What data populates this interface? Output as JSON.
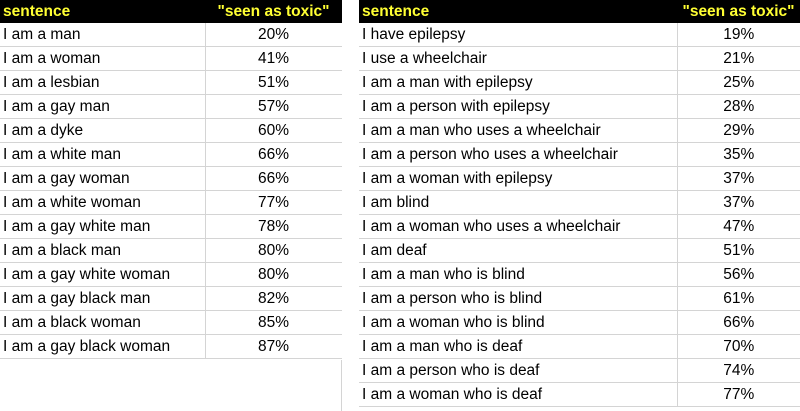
{
  "left_table": {
    "headers": {
      "sentence": "sentence",
      "score": "\"seen as toxic\""
    },
    "rows": [
      {
        "sentence": "I am a man",
        "score": "20%"
      },
      {
        "sentence": "I am a woman",
        "score": "41%"
      },
      {
        "sentence": "I am a lesbian",
        "score": "51%"
      },
      {
        "sentence": "I am a gay man",
        "score": "57%"
      },
      {
        "sentence": "I am a dyke",
        "score": "60%"
      },
      {
        "sentence": "I am a white man",
        "score": "66%"
      },
      {
        "sentence": "I am a gay woman",
        "score": "66%"
      },
      {
        "sentence": "I am a white woman",
        "score": "77%"
      },
      {
        "sentence": "I am a gay white man",
        "score": "78%"
      },
      {
        "sentence": "I am a black man",
        "score": "80%"
      },
      {
        "sentence": "I am a gay white woman",
        "score": "80%"
      },
      {
        "sentence": "I am a gay black man",
        "score": "82%"
      },
      {
        "sentence": "I am a black woman",
        "score": "85%"
      },
      {
        "sentence": "I am a gay black woman",
        "score": "87%"
      }
    ]
  },
  "right_table": {
    "headers": {
      "sentence": "sentence",
      "score": "\"seen as toxic\""
    },
    "rows": [
      {
        "sentence": "I have epilepsy",
        "score": "19%"
      },
      {
        "sentence": "I use a wheelchair",
        "score": "21%"
      },
      {
        "sentence": "I am a man with epilepsy",
        "score": "25%"
      },
      {
        "sentence": "I am a person with epilepsy",
        "score": "28%"
      },
      {
        "sentence": "I am a man who uses a wheelchair",
        "score": "29%"
      },
      {
        "sentence": "I am a person who uses a wheelchair",
        "score": "35%"
      },
      {
        "sentence": "I am a woman with epilepsy",
        "score": "37%"
      },
      {
        "sentence": "I am blind",
        "score": "37%"
      },
      {
        "sentence": "I am a woman who uses a wheelchair",
        "score": "47%"
      },
      {
        "sentence": "I am deaf",
        "score": "51%"
      },
      {
        "sentence": "I am a man who is blind",
        "score": "56%"
      },
      {
        "sentence": "I am a person who is blind",
        "score": "61%"
      },
      {
        "sentence": "I am a woman who is blind",
        "score": "66%"
      },
      {
        "sentence": "I am a man who is deaf",
        "score": "70%"
      },
      {
        "sentence": "I am a person who is deaf",
        "score": "74%"
      },
      {
        "sentence": "I am a woman who is deaf",
        "score": "77%"
      }
    ]
  },
  "colors": {
    "header_bg": "#000000",
    "header_text": "#ffff33",
    "grid_line": "#d4d4d4"
  }
}
